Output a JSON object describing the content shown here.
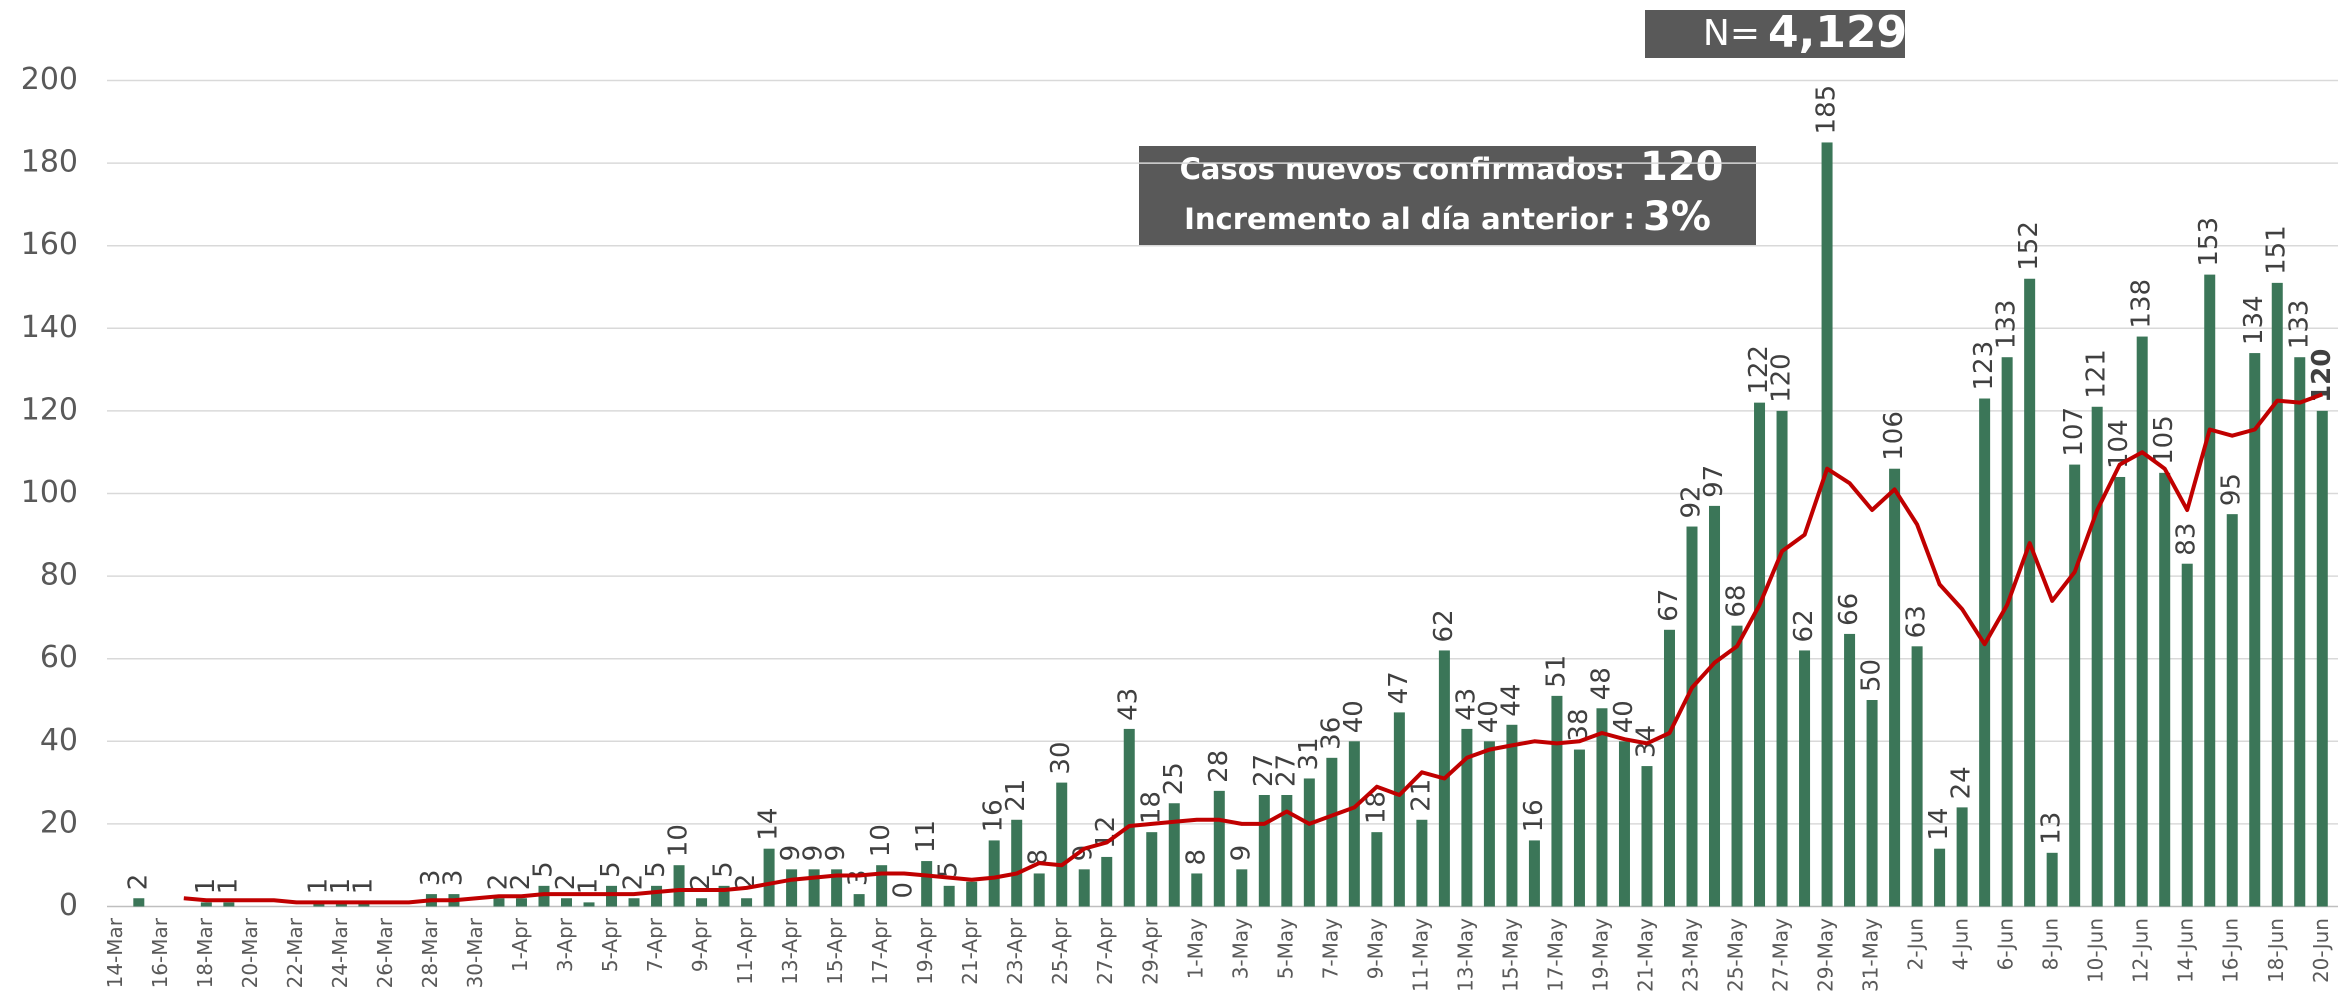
{
  "chart_data": {
    "type": "bar",
    "categories": [
      "14-Mar",
      null,
      "16-Mar",
      null,
      "18-Mar",
      null,
      "20-Mar",
      null,
      "22-Mar",
      null,
      "24-Mar",
      null,
      "26-Mar",
      null,
      "28-Mar",
      null,
      "30-Mar",
      null,
      "1-Apr",
      null,
      "3-Apr",
      null,
      "5-Apr",
      null,
      "7-Apr",
      null,
      "9-Apr",
      null,
      "11-Apr",
      null,
      "13-Apr",
      null,
      "15-Apr",
      null,
      "17-Apr",
      null,
      "19-Apr",
      null,
      "21-Apr",
      null,
      "23-Apr",
      null,
      "25-Apr",
      null,
      "27-Apr",
      null,
      "29-Apr",
      null,
      "1-May",
      null,
      "3-May",
      null,
      "5-May",
      null,
      "7-May",
      null,
      "9-May",
      null,
      "11-May",
      null,
      "13-May",
      null,
      "15-May",
      null,
      "17-May",
      null,
      "19-May",
      null,
      "21-May",
      null,
      "23-May",
      null,
      "25-May",
      null,
      "27-May",
      null,
      "29-May",
      null,
      "31-May",
      null,
      "2-Jun",
      null,
      "4-Jun",
      null,
      "6-Jun",
      null,
      "8-Jun",
      null,
      "10-Jun",
      null,
      "12-Jun",
      null,
      "14-Jun",
      null,
      "16-Jun",
      null,
      "18-Jun",
      null,
      "20-Jun"
    ],
    "values": [
      0,
      2,
      0,
      0,
      1,
      1,
      0,
      0,
      0,
      1,
      1,
      1,
      0,
      0,
      3,
      3,
      0,
      2,
      2,
      5,
      2,
      1,
      5,
      2,
      5,
      10,
      2,
      5,
      2,
      14,
      9,
      9,
      9,
      3,
      10,
      0,
      11,
      5,
      6,
      16,
      21,
      8,
      30,
      9,
      12,
      43,
      18,
      25,
      8,
      28,
      9,
      27,
      27,
      31,
      36,
      40,
      18,
      47,
      21,
      62,
      43,
      40,
      44,
      16,
      51,
      38,
      48,
      40,
      34,
      67,
      92,
      97,
      68,
      122,
      120,
      62,
      185,
      66,
      50,
      106,
      63,
      14,
      24,
      123,
      133,
      152,
      13,
      107,
      121,
      104,
      138,
      105,
      83,
      153,
      95,
      134,
      151,
      133,
      120
    ],
    "value_labels": [
      null,
      "2",
      null,
      null,
      "1",
      "1",
      null,
      null,
      null,
      "1",
      "1",
      "1",
      null,
      null,
      "3",
      "3",
      null,
      "2",
      "2",
      "5",
      "2",
      "1",
      "5",
      "2",
      "5",
      "10",
      "2",
      "5",
      "2",
      "14",
      "9",
      "9",
      "9",
      "3",
      "10",
      "0",
      "11",
      "5",
      null,
      "16",
      "21",
      "8",
      "30",
      "9",
      "12",
      "43",
      "18",
      "25",
      "8",
      "28",
      "9",
      "27",
      "27",
      "31",
      "36",
      "40",
      "18",
      "47",
      "21",
      "62",
      "43",
      "40",
      "44",
      "16",
      "51",
      "38",
      "48",
      "40",
      "34",
      "67",
      "92",
      "97",
      "68",
      "122",
      "120",
      "62",
      "185",
      "66",
      "50",
      "106",
      "63",
      "14",
      "24",
      "123",
      "133",
      "152",
      "13",
      "107",
      "121",
      "104",
      "138",
      "105",
      "83",
      "153",
      "95",
      "134",
      "151",
      "133",
      "120"
    ],
    "color": "#3b7658",
    "line": {
      "color": "#c00000",
      "values": [
        null,
        null,
        null,
        2,
        1.5,
        1.5,
        1.5,
        1.5,
        1,
        1,
        1,
        1,
        1,
        1,
        1.5,
        1.5,
        2,
        2.5,
        2.5,
        3,
        3,
        3,
        3,
        3,
        3.5,
        4,
        4,
        4,
        4.5,
        5.5,
        6.5,
        7,
        7.5,
        7.5,
        8,
        8,
        7.5,
        7,
        6.5,
        7,
        8,
        10.5,
        10,
        14,
        15.5,
        19.5,
        20,
        20.5,
        21,
        21,
        20,
        20,
        23,
        20,
        22,
        24,
        29,
        27,
        32.5,
        31,
        36,
        38,
        39,
        40,
        39.5,
        40,
        42,
        40.5,
        39.5,
        42,
        53,
        59,
        63,
        73,
        86,
        90,
        106,
        102.5,
        96,
        101,
        92.5,
        78,
        72,
        63.5,
        73,
        88,
        74,
        81,
        96,
        107,
        110,
        106,
        96,
        115.5,
        114,
        115.5,
        122.5,
        122,
        124
      ]
    },
    "ylim": [
      0,
      200
    ],
    "yticks": [
      0,
      20,
      40,
      60,
      80,
      100,
      120,
      140,
      160,
      180,
      200
    ],
    "grid": true,
    "annotations": {
      "n_label": "N=",
      "n_value": "4,129",
      "new_cases_label": "Casos nuevos confirmados:",
      "new_cases_value": "120",
      "increment_label": "Incremento al día anterior :",
      "increment_value": "3%"
    }
  }
}
